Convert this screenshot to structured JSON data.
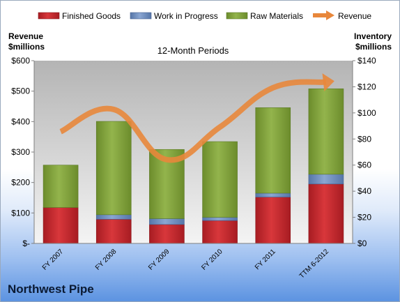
{
  "footer": {
    "company": "Northwest Pipe"
  },
  "chart_data": {
    "type": "bar",
    "subtype": "stacked bar with line on secondary axis",
    "title": "12-Month Periods",
    "categories": [
      "FY 2007",
      "FY 2008",
      "FY 2009",
      "FY 2010",
      "FY 2011",
      "TTM 6-2012"
    ],
    "y_left": {
      "label_lines": [
        "Revenue",
        "$millions"
      ],
      "range": [
        0,
        600
      ],
      "ticks": [
        0,
        100,
        200,
        300,
        400,
        500,
        600
      ],
      "tick_labels": [
        "$-",
        "$100",
        "$200",
        "$300",
        "$400",
        "$500",
        "$600"
      ]
    },
    "y_right": {
      "label_lines": [
        "Inventory",
        "$millions"
      ],
      "range": [
        0,
        140
      ],
      "ticks": [
        0,
        20,
        40,
        60,
        80,
        100,
        120,
        140
      ],
      "tick_labels": [
        "$0",
        "$20",
        "$40",
        "$60",
        "$80",
        "$100",
        "$120",
        "$140"
      ]
    },
    "series": [
      {
        "name": "Finished Goods",
        "axis": "right",
        "kind": "bar",
        "color": "#c0282d",
        "values": [
          27.5,
          18.5,
          14.5,
          17.5,
          35.5,
          45.5
        ]
      },
      {
        "name": "Work in Progress",
        "axis": "right",
        "kind": "bar",
        "color": "#6f8fbf",
        "values": [
          0,
          3.5,
          4.5,
          2.5,
          3.0,
          7.5
        ]
      },
      {
        "name": "Raw Materials",
        "axis": "right",
        "kind": "bar",
        "color": "#7e9f3a",
        "values": [
          32.5,
          71.5,
          53.0,
          58.0,
          65.5,
          65.5
        ]
      },
      {
        "name": "Revenue",
        "axis": "left",
        "kind": "line",
        "color": "#e8873b",
        "values": [
          367,
          440,
          275,
          382,
          511,
          530
        ]
      }
    ],
    "legend_position": "top",
    "grid": false
  }
}
